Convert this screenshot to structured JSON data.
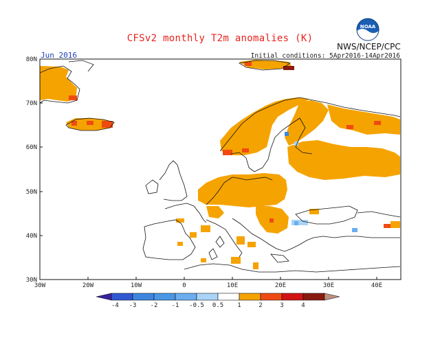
{
  "title": "CFSv2 monthly T2m anomalies (K)",
  "organization": "NWS/NCEP/CPC",
  "logo_text": "NOAA",
  "month_label": "Jun 2016",
  "initial_conditions": "Initial conditions: 5Apr2016-14Apr2016",
  "map": {
    "lon_range": [
      -30,
      45
    ],
    "lat_range": [
      30,
      80
    ],
    "lon_ticks": [
      "30W",
      "20W",
      "10W",
      "0",
      "10E",
      "20E",
      "30E",
      "40E"
    ],
    "lat_ticks": [
      "30N",
      "40N",
      "50N",
      "60N",
      "70N",
      "80N"
    ]
  },
  "colorbar": {
    "labels": [
      "-4",
      "-3",
      "-2",
      "-1",
      "-0.5",
      "0.5",
      "1",
      "2",
      "3",
      "4"
    ],
    "colors": [
      "#3b22a0",
      "#2f58d2",
      "#3d86de",
      "#6aaeef",
      "#a9d4f7",
      "#ffffff",
      "#f5a300",
      "#f04a13",
      "#d21313",
      "#8b1a0e",
      "#c0907e"
    ]
  }
}
